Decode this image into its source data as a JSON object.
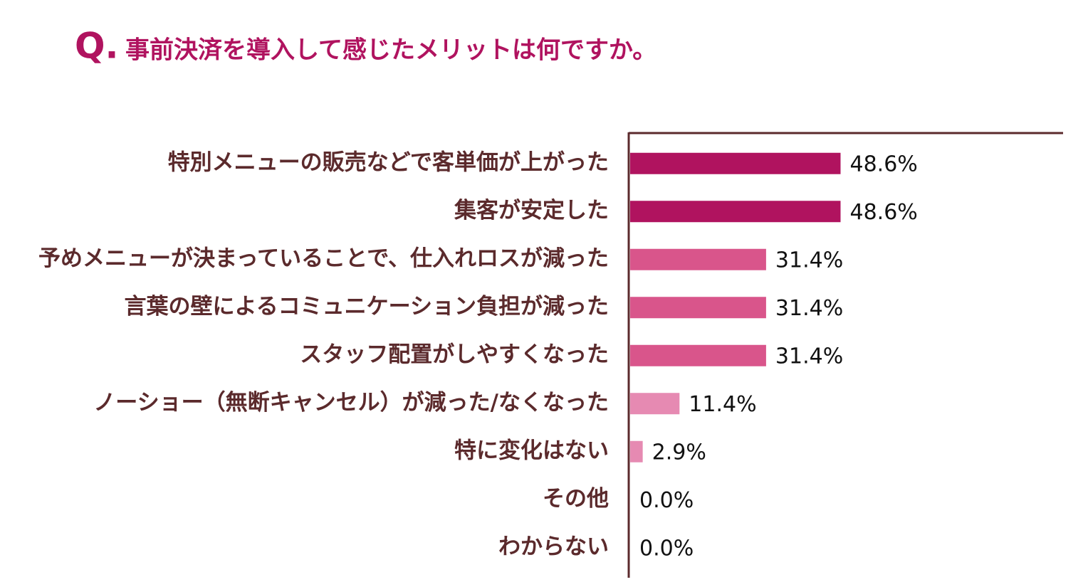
{
  "chart_data": {
    "type": "hbar",
    "title_prefix": "Q.",
    "title": "事前決済を導入して感じたメリットは何ですか。",
    "categories": [
      "特別メニューの販売などで客単価が上がった",
      "集客が安定した",
      "予めメニューが決まっていることで、仕入れロスが減った",
      "言葉の壁によるコミュニケーション負担が減った",
      "スタッフ配置がしやすくなった",
      "ノーショー（無断キャンセル）が減った/なくなった",
      "特に変化はない",
      "その他",
      "わからない"
    ],
    "values": [
      48.6,
      48.6,
      31.4,
      31.4,
      31.4,
      11.4,
      2.9,
      0.0,
      0.0
    ],
    "value_labels": [
      "48.6%",
      "48.6%",
      "31.4%",
      "31.4%",
      "31.4%",
      "11.4%",
      "2.9%",
      "0.0%",
      "0.0%"
    ],
    "colors": [
      "#b0135f",
      "#b0135f",
      "#d9558b",
      "#d9558b",
      "#d9558b",
      "#e68ab2",
      "#e68ab2",
      "#e68ab2",
      "#e68ab2"
    ],
    "xlim": [
      0,
      100
    ]
  }
}
